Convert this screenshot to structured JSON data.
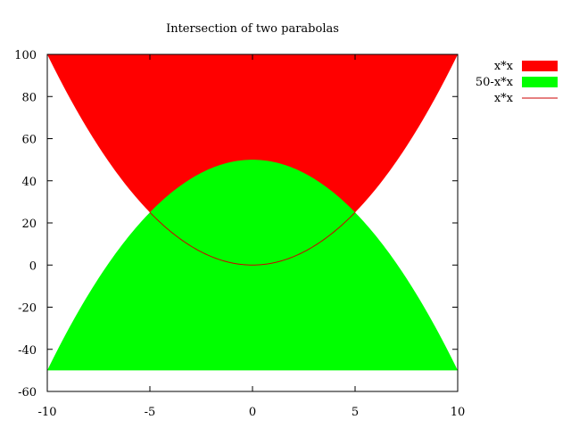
{
  "chart_data": {
    "type": "area",
    "title": "Intersection of two parabolas",
    "xlabel": "",
    "ylabel": "",
    "xlim": [
      -10,
      10
    ],
    "ylim": [
      -60,
      100
    ],
    "x_ticks": [
      -10,
      -5,
      0,
      5,
      10
    ],
    "y_ticks": [
      100,
      80,
      60,
      40,
      20,
      0,
      -20,
      -40,
      -60
    ],
    "x_tick_labels": [
      "-10",
      "-5",
      "0",
      "5",
      "10"
    ],
    "y_tick_labels": [
      "100",
      "80",
      "60",
      "40",
      "20",
      "0",
      "-20",
      "-40",
      "-60"
    ],
    "grid": false,
    "legend_position": "top-right outside",
    "series": [
      {
        "name": "x*x",
        "style": "filled area from curve up to 100",
        "color": "#ff0000",
        "x": [
          -10,
          -8,
          -6,
          -5,
          -4,
          -2,
          0,
          2,
          4,
          5,
          6,
          8,
          10
        ],
        "y": [
          100,
          64,
          36,
          25,
          16,
          4,
          0,
          4,
          16,
          25,
          36,
          64,
          100
        ]
      },
      {
        "name": "50-x*x",
        "style": "filled area from curve down to -50",
        "color": "#00ff00",
        "x": [
          -10,
          -8,
          -6,
          -5,
          -4,
          -2,
          0,
          2,
          4,
          5,
          6,
          8,
          10
        ],
        "y": [
          -50,
          -14,
          14,
          25,
          34,
          46,
          50,
          46,
          34,
          25,
          14,
          -14,
          -50
        ]
      },
      {
        "name": "x*x",
        "style": "line",
        "color": "#cc0000",
        "x": [
          -5,
          -4,
          -3,
          -2,
          -1,
          0,
          1,
          2,
          3,
          4,
          5
        ],
        "y": [
          25,
          16,
          9,
          4,
          1,
          0,
          1,
          4,
          9,
          16,
          25
        ]
      }
    ]
  }
}
